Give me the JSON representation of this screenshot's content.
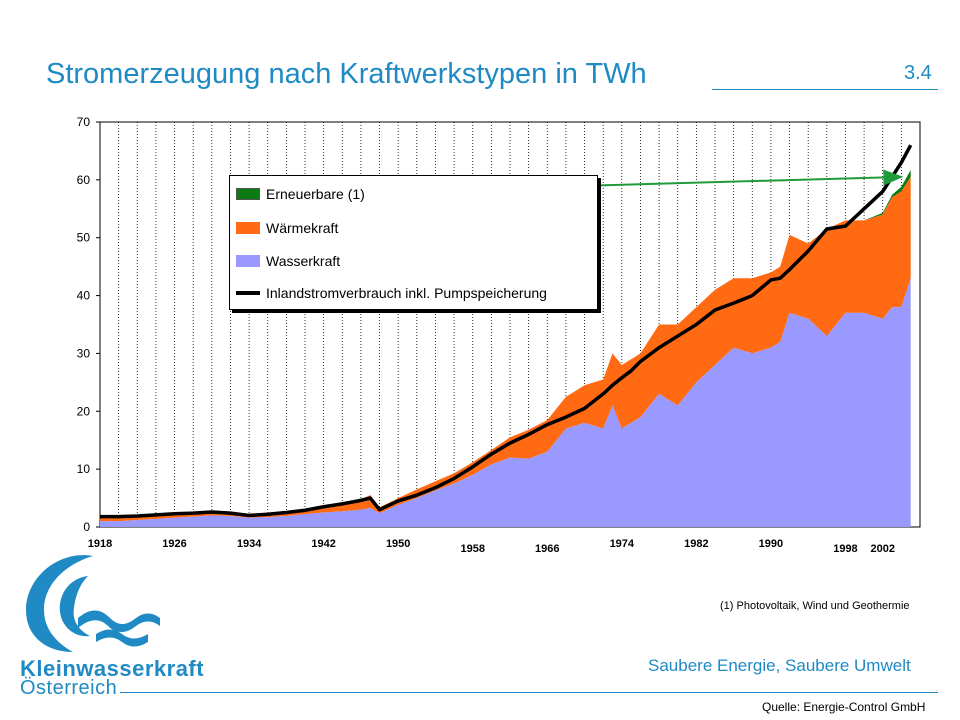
{
  "header": {
    "title": "Stromerzeugung nach Kraftwerkstypen in TWh",
    "slide_number": "3.4"
  },
  "footer": {
    "footnote": "(1) Photovoltaik, Wind und Geothermie",
    "slogan": "Saubere Energie, Saubere Umwelt",
    "source": "Quelle: Energie-Control GmbH",
    "logo_line1": "Kleinwasserkraft",
    "logo_line2": "Österreich"
  },
  "colors": {
    "accent": "#1f8ac4",
    "erneuerbare": "#0a7a12",
    "waermekraft": "#ff6a13",
    "wasserkraft": "#9999ff",
    "verbrauch": "#000000",
    "arrow": "#1e9c3a"
  },
  "chart_data": {
    "type": "area",
    "title": "Stromerzeugung nach Kraftwerkstypen in TWh",
    "xlabel": "",
    "ylabel": "",
    "xlim": [
      1918,
      2006
    ],
    "ylim": [
      0,
      70
    ],
    "yticks": [
      0,
      10,
      20,
      30,
      40,
      50,
      60,
      70
    ],
    "xticks": [
      1918,
      1926,
      1934,
      1942,
      1950,
      1958,
      1966,
      1974,
      1982,
      1990,
      1998,
      2002
    ],
    "grid": "vertical dotted",
    "legend": "top-left inside plot",
    "legend_entries": [
      "Erneuerbare (1)",
      "Wärmekraft",
      "Wasserkraft",
      "Inlandstromverbrauch inkl. Pumpspeicherung"
    ],
    "x": [
      1918,
      1920,
      1922,
      1924,
      1926,
      1928,
      1930,
      1932,
      1934,
      1936,
      1938,
      1940,
      1942,
      1944,
      1946,
      1947,
      1948,
      1950,
      1952,
      1954,
      1956,
      1958,
      1960,
      1962,
      1964,
      1966,
      1968,
      1970,
      1972,
      1973,
      1974,
      1975,
      1976,
      1978,
      1980,
      1982,
      1984,
      1986,
      1988,
      1990,
      1991,
      1992,
      1994,
      1996,
      1998,
      2000,
      2002,
      2003,
      2004,
      2005
    ],
    "series": [
      {
        "name": "Wasserkraft",
        "values": [
          1.0,
          1.0,
          1.2,
          1.4,
          1.6,
          1.8,
          2.0,
          1.9,
          1.6,
          1.7,
          1.9,
          2.2,
          2.5,
          2.7,
          3.0,
          3.3,
          2.4,
          3.8,
          5.0,
          6.3,
          7.5,
          9.0,
          10.8,
          12.0,
          11.8,
          13.0,
          17.0,
          18.0,
          17.0,
          21.0,
          17.0,
          18.0,
          19.0,
          23.0,
          21.0,
          25.0,
          28.0,
          31.0,
          30.0,
          31.0,
          32.0,
          37.0,
          36.0,
          33.0,
          37.0,
          37.0,
          36.0,
          38.0,
          38.0,
          43.0
        ]
      },
      {
        "name": "Wärmekraft",
        "values": [
          0.8,
          0.8,
          0.8,
          0.8,
          0.8,
          0.8,
          0.8,
          0.7,
          0.6,
          0.7,
          0.8,
          0.9,
          1.2,
          1.4,
          1.8,
          2.2,
          1.0,
          1.2,
          1.5,
          1.6,
          1.8,
          2.2,
          2.5,
          3.5,
          5.0,
          5.5,
          5.5,
          6.5,
          8.5,
          9.0,
          11.0,
          11.0,
          11.0,
          12.0,
          14.0,
          13.0,
          13.0,
          12.0,
          13.0,
          13.0,
          13.0,
          13.5,
          13.0,
          18.5,
          16.0,
          16.0,
          18.0,
          19.0,
          20.0,
          17.5
        ]
      },
      {
        "name": "Erneuerbare (1)",
        "values": [
          0,
          0,
          0,
          0,
          0,
          0,
          0,
          0,
          0,
          0,
          0,
          0,
          0,
          0,
          0,
          0,
          0,
          0,
          0,
          0,
          0,
          0,
          0,
          0,
          0,
          0,
          0,
          0,
          0,
          0,
          0,
          0,
          0,
          0,
          0,
          0,
          0,
          0,
          0,
          0,
          0,
          0,
          0,
          0,
          0,
          0,
          0.3,
          0.4,
          0.8,
          1.2
        ]
      },
      {
        "name": "Inlandstromverbrauch inkl. Pumpspeicherung",
        "values": [
          1.8,
          1.8,
          1.9,
          2.1,
          2.3,
          2.4,
          2.6,
          2.4,
          2.0,
          2.2,
          2.5,
          2.9,
          3.5,
          4.0,
          4.6,
          5.0,
          3.0,
          4.5,
          5.5,
          6.8,
          8.4,
          10.4,
          12.6,
          14.5,
          16.0,
          17.7,
          19.0,
          20.5,
          23.0,
          24.5,
          25.8,
          27.0,
          28.6,
          31.0,
          33.0,
          35.0,
          37.5,
          38.7,
          40.0,
          42.7,
          43.0,
          44.5,
          47.7,
          51.5,
          52.0,
          55.0,
          58.0,
          60.5,
          63.0,
          66.0
        ]
      }
    ],
    "annotation": {
      "from_legend_entry": "Erneuerbare (1)",
      "to": [
        2004,
        60.5
      ]
    }
  }
}
